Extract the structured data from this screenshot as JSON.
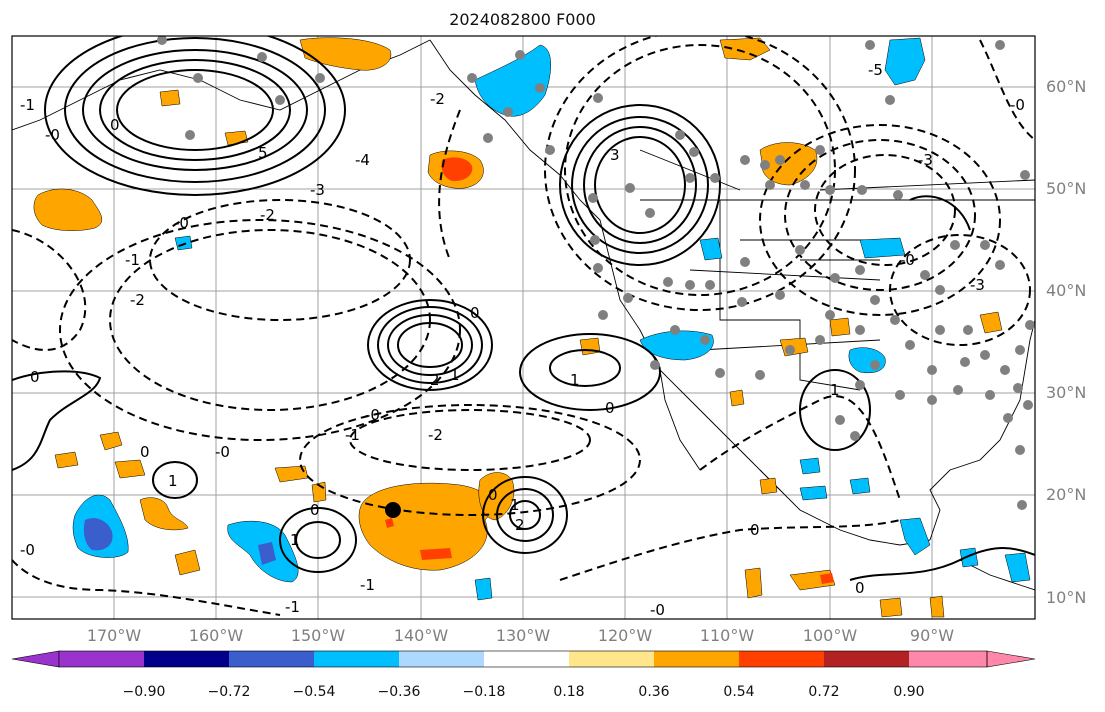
{
  "title": "2024082800 F000",
  "lat_labels": [
    "60°N",
    "50°N",
    "40°N",
    "30°N",
    "20°N",
    "10°N"
  ],
  "lon_labels": [
    "170°W",
    "160°W",
    "150°W",
    "140°W",
    "130°W",
    "120°W",
    "110°W",
    "100°W",
    "90°W"
  ],
  "colorbar": {
    "ticks": [
      "−0.90",
      "−0.72",
      "−0.54",
      "−0.36",
      "−0.18",
      "0.18",
      "0.36",
      "0.54",
      "0.72",
      "0.90"
    ],
    "colors": [
      "#9933cc",
      "#00008b",
      "#3a5fcd",
      "#00bfff",
      "#add8ff",
      "#ffffff",
      "#ffe68a",
      "#ffa500",
      "#ff4000",
      "#b22222",
      "#ff88aa"
    ]
  },
  "contour_labels": [
    "0",
    "1",
    "2",
    "3",
    "4",
    "5",
    "-0",
    "-1",
    "-2",
    "-3",
    "-4",
    "-5"
  ],
  "colors": {
    "orange": "#ffa500",
    "red_orange": "#ff4000",
    "sky_blue": "#00bfff",
    "mid_blue": "#3a5fcd",
    "station_dot": "#808080",
    "grid": "#a0a0a0"
  }
}
